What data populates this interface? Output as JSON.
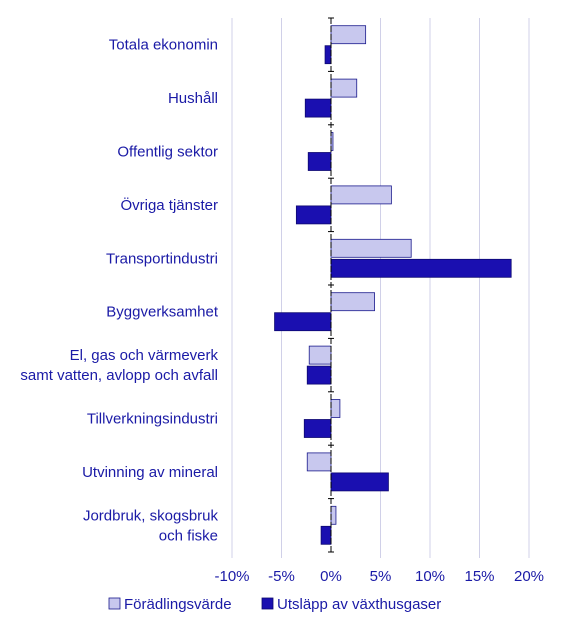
{
  "chart_data": {
    "type": "bar",
    "orientation": "horizontal",
    "categories": [
      [
        "Totala ekonomin"
      ],
      [
        "Hushåll"
      ],
      [
        "Offentlig sektor"
      ],
      [
        "Övriga tjänster"
      ],
      [
        "Transportindustri"
      ],
      [
        "Byggverksamhet"
      ],
      [
        "El, gas och värmeverk",
        "samt vatten, avlopp och avfall"
      ],
      [
        "Tillverkningsindustri"
      ],
      [
        "Utvinning av mineral"
      ],
      [
        "Jordbruk, skogsbruk",
        "och fiske"
      ]
    ],
    "series": [
      {
        "name": "Förädlingsvärde",
        "values": [
          3.5,
          2.6,
          0.2,
          6.1,
          8.1,
          4.4,
          -2.2,
          0.9,
          -2.4,
          0.5
        ],
        "color": "#c8c8ee",
        "stroke": "#1a1a8c"
      },
      {
        "name": "Utsläpp av växthusgaser",
        "values": [
          -0.6,
          -2.6,
          -2.3,
          -3.5,
          18.2,
          -5.7,
          -2.4,
          -2.7,
          5.8,
          -1.0
        ],
        "color": "#1a0fb0",
        "stroke": "#0d0870"
      }
    ],
    "xlim": [
      -10,
      20
    ],
    "xticks": [
      -10,
      -5,
      0,
      5,
      10,
      15,
      20
    ],
    "xtick_labels": [
      "-10%",
      "-5%",
      "0%",
      "5%",
      "10%",
      "15%",
      "20%"
    ],
    "grid": true,
    "legend_position": "bottom",
    "colors": {
      "text": "#1a1aa6",
      "grid": "#d0d0e8",
      "axis": "#000000"
    }
  }
}
